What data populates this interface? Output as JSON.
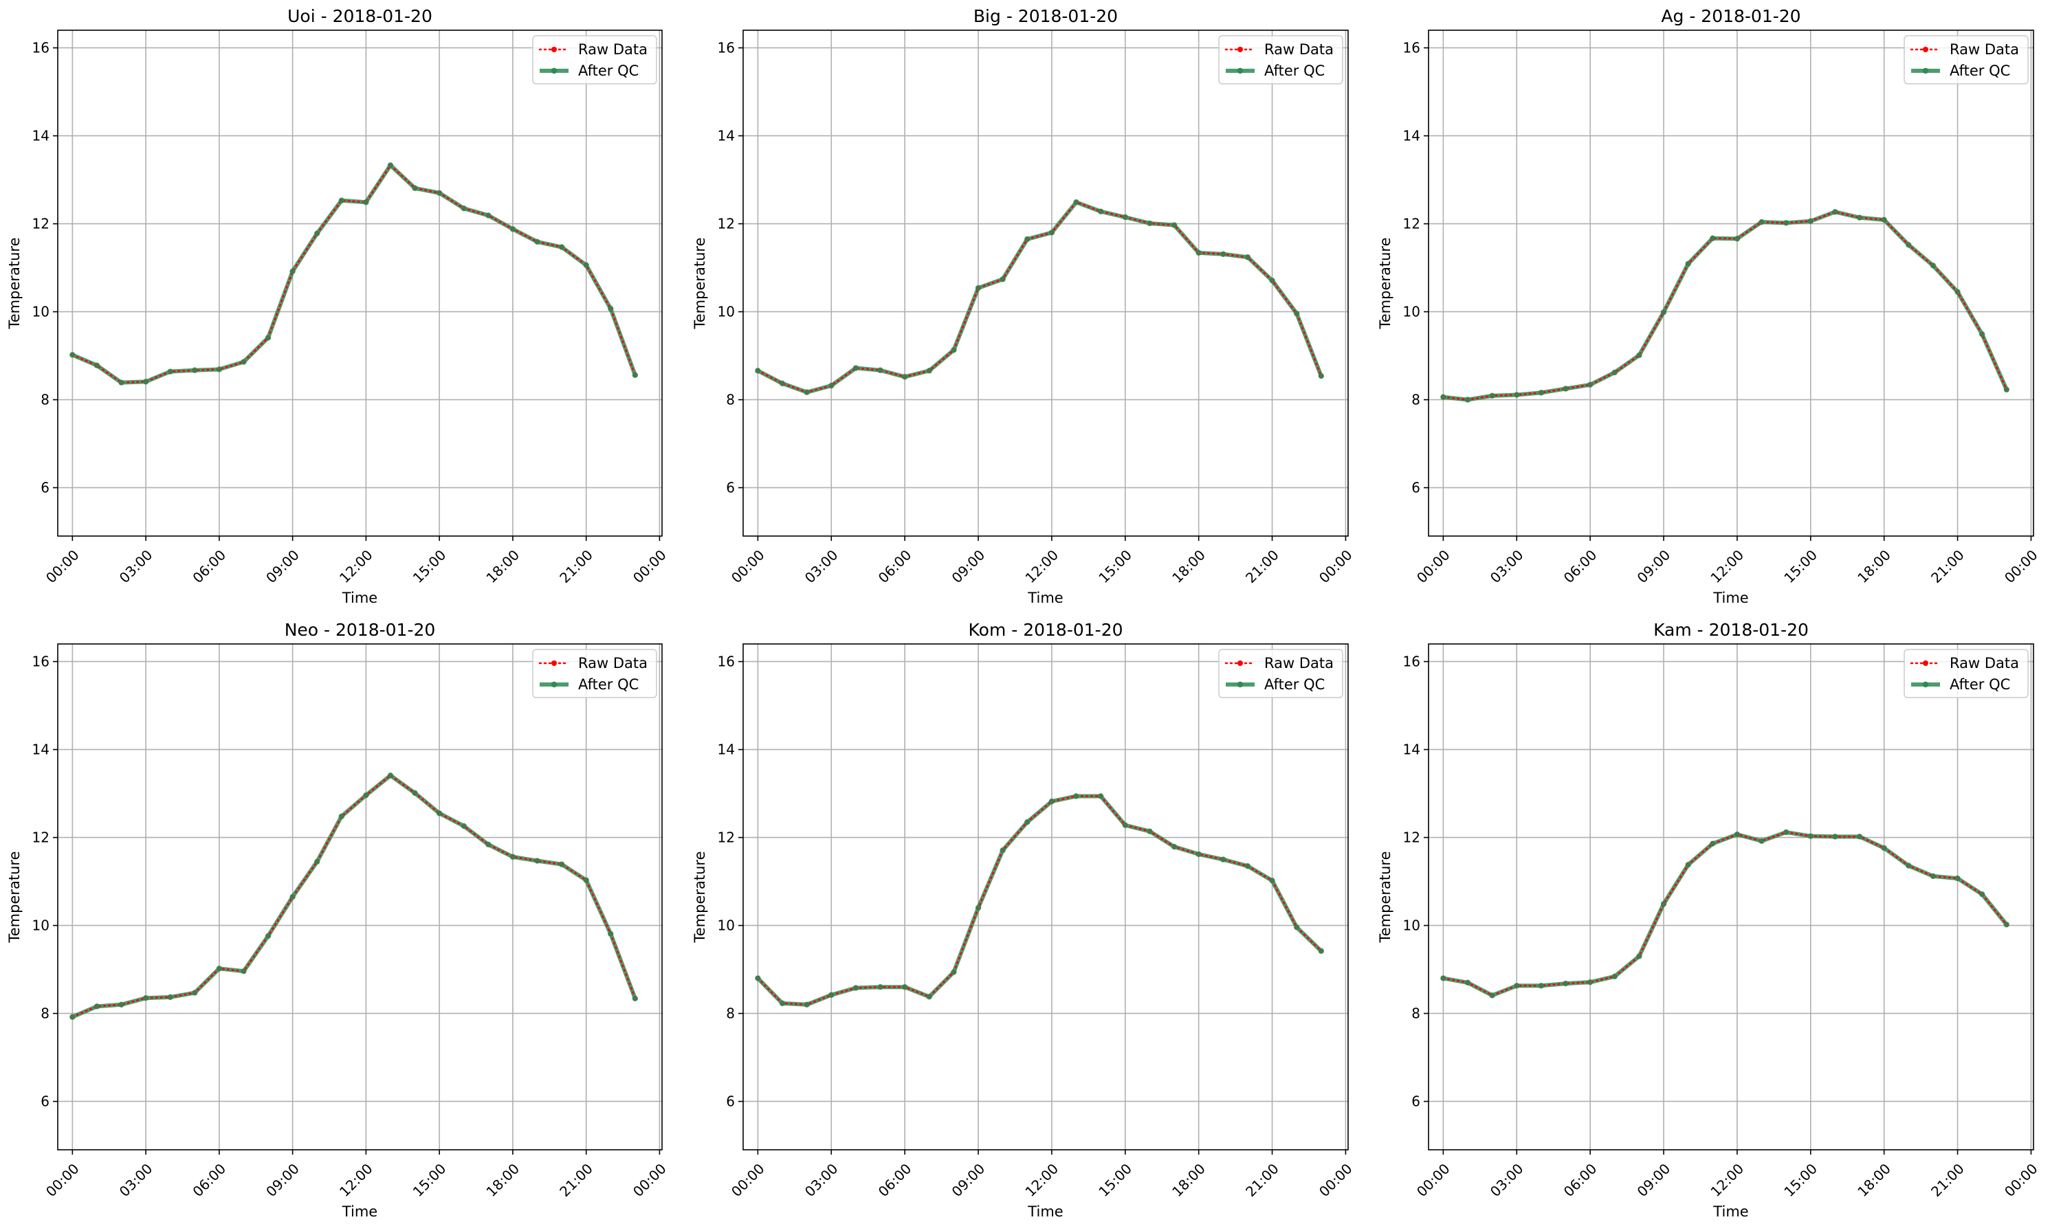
{
  "figure": {
    "colors": {
      "raw": "#ff0000",
      "qc": "#2e8b57",
      "grid": "#b0b0b0",
      "axis": "#000000"
    }
  },
  "chart_data": [
    {
      "type": "line",
      "title": "Uoi - 2018-01-20",
      "xlabel": "Time",
      "ylabel": "Temperature",
      "xlim": [
        -0.6,
        24.1
      ],
      "ylim": [
        4.9,
        16.4
      ],
      "yticks": [
        6,
        8,
        10,
        12,
        14,
        16
      ],
      "xticks": [
        0,
        3,
        6,
        9,
        12,
        15,
        18,
        21,
        24
      ],
      "xtick_labels": [
        "00:00",
        "03:00",
        "06:00",
        "09:00",
        "12:00",
        "15:00",
        "18:00",
        "21:00",
        "00:00"
      ],
      "grid": true,
      "legend_position": "top-right",
      "x": [
        "00:00",
        "01:00",
        "02:00",
        "03:00",
        "04:00",
        "05:00",
        "06:00",
        "07:00",
        "08:00",
        "09:00",
        "10:00",
        "11:00",
        "12:00",
        "13:00",
        "14:00",
        "15:00",
        "16:00",
        "17:00",
        "18:00",
        "19:00",
        "20:00",
        "21:00",
        "22:00",
        "23:00"
      ],
      "series": [
        {
          "name": "Raw Data",
          "values": [
            9.02,
            8.78,
            8.39,
            8.41,
            8.64,
            8.67,
            8.69,
            8.86,
            9.41,
            10.92,
            11.78,
            12.53,
            12.49,
            13.33,
            12.81,
            12.7,
            12.35,
            12.19,
            11.88,
            11.59,
            11.47,
            11.06,
            10.07,
            8.56
          ]
        },
        {
          "name": "After QC",
          "values": [
            9.02,
            8.78,
            8.39,
            8.41,
            8.64,
            8.67,
            8.69,
            8.86,
            9.41,
            10.92,
            11.78,
            12.53,
            12.49,
            13.33,
            12.81,
            12.7,
            12.35,
            12.19,
            11.88,
            11.59,
            11.47,
            11.06,
            10.07,
            8.56
          ]
        }
      ]
    },
    {
      "type": "line",
      "title": "Big - 2018-01-20",
      "xlabel": "Time",
      "ylabel": "Temperature",
      "xlim": [
        -0.6,
        24.1
      ],
      "ylim": [
        4.9,
        16.4
      ],
      "yticks": [
        6,
        8,
        10,
        12,
        14,
        16
      ],
      "xticks": [
        0,
        3,
        6,
        9,
        12,
        15,
        18,
        21,
        24
      ],
      "xtick_labels": [
        "00:00",
        "03:00",
        "06:00",
        "09:00",
        "12:00",
        "15:00",
        "18:00",
        "21:00",
        "00:00"
      ],
      "grid": true,
      "legend_position": "top-right",
      "x": [
        "00:00",
        "01:00",
        "02:00",
        "03:00",
        "04:00",
        "05:00",
        "06:00",
        "07:00",
        "08:00",
        "09:00",
        "10:00",
        "11:00",
        "12:00",
        "13:00",
        "14:00",
        "15:00",
        "16:00",
        "17:00",
        "18:00",
        "19:00",
        "20:00",
        "21:00",
        "22:00",
        "23:00"
      ],
      "series": [
        {
          "name": "Raw Data",
          "values": [
            8.66,
            8.37,
            8.17,
            8.32,
            8.72,
            8.67,
            8.52,
            8.66,
            9.13,
            10.54,
            10.74,
            11.65,
            11.8,
            12.49,
            12.28,
            12.15,
            12.01,
            11.97,
            11.34,
            11.31,
            11.24,
            10.71,
            9.96,
            8.54
          ]
        },
        {
          "name": "After QC",
          "values": [
            8.66,
            8.37,
            8.17,
            8.32,
            8.72,
            8.67,
            8.52,
            8.66,
            9.13,
            10.54,
            10.74,
            11.65,
            11.8,
            12.49,
            12.28,
            12.15,
            12.01,
            11.97,
            11.34,
            11.31,
            11.24,
            10.71,
            9.96,
            8.54
          ]
        }
      ]
    },
    {
      "type": "line",
      "title": "Ag - 2018-01-20",
      "xlabel": "Time",
      "ylabel": "Temperature",
      "xlim": [
        -0.6,
        24.1
      ],
      "ylim": [
        4.9,
        16.4
      ],
      "yticks": [
        6,
        8,
        10,
        12,
        14,
        16
      ],
      "xticks": [
        0,
        3,
        6,
        9,
        12,
        15,
        18,
        21,
        24
      ],
      "xtick_labels": [
        "00:00",
        "03:00",
        "06:00",
        "09:00",
        "12:00",
        "15:00",
        "18:00",
        "21:00",
        "00:00"
      ],
      "grid": true,
      "legend_position": "top-right",
      "x": [
        "00:00",
        "01:00",
        "02:00",
        "03:00",
        "04:00",
        "05:00",
        "06:00",
        "07:00",
        "08:00",
        "09:00",
        "10:00",
        "11:00",
        "12:00",
        "13:00",
        "14:00",
        "15:00",
        "16:00",
        "17:00",
        "18:00",
        "19:00",
        "20:00",
        "21:00",
        "22:00",
        "23:00"
      ],
      "series": [
        {
          "name": "Raw Data",
          "values": [
            8.06,
            8.0,
            8.09,
            8.11,
            8.16,
            8.25,
            8.34,
            8.62,
            9.01,
            9.99,
            11.09,
            11.67,
            11.66,
            12.04,
            12.02,
            12.06,
            12.27,
            12.14,
            12.09,
            11.52,
            11.05,
            10.45,
            9.49,
            8.23
          ]
        },
        {
          "name": "After QC",
          "values": [
            8.06,
            8.0,
            8.09,
            8.11,
            8.16,
            8.25,
            8.34,
            8.62,
            9.01,
            9.99,
            11.09,
            11.67,
            11.66,
            12.04,
            12.02,
            12.06,
            12.27,
            12.14,
            12.09,
            11.52,
            11.05,
            10.45,
            9.49,
            8.23
          ]
        }
      ]
    },
    {
      "type": "line",
      "title": "Neo - 2018-01-20",
      "xlabel": "Time",
      "ylabel": "Temperature",
      "xlim": [
        -0.6,
        24.1
      ],
      "ylim": [
        4.9,
        16.4
      ],
      "yticks": [
        6,
        8,
        10,
        12,
        14,
        16
      ],
      "xticks": [
        0,
        3,
        6,
        9,
        12,
        15,
        18,
        21,
        24
      ],
      "xtick_labels": [
        "00:00",
        "03:00",
        "06:00",
        "09:00",
        "12:00",
        "15:00",
        "18:00",
        "21:00",
        "00:00"
      ],
      "grid": true,
      "legend_position": "top-right",
      "x": [
        "00:00",
        "01:00",
        "02:00",
        "03:00",
        "04:00",
        "05:00",
        "06:00",
        "07:00",
        "08:00",
        "09:00",
        "10:00",
        "11:00",
        "12:00",
        "13:00",
        "14:00",
        "15:00",
        "16:00",
        "17:00",
        "18:00",
        "19:00",
        "20:00",
        "21:00",
        "22:00",
        "23:00"
      ],
      "series": [
        {
          "name": "Raw Data",
          "values": [
            7.92,
            8.16,
            8.2,
            8.35,
            8.37,
            8.47,
            9.02,
            8.96,
            9.76,
            10.65,
            11.45,
            12.48,
            12.96,
            13.41,
            13.01,
            12.55,
            12.26,
            11.84,
            11.56,
            11.47,
            11.39,
            11.03,
            9.81,
            8.34
          ]
        },
        {
          "name": "After QC",
          "values": [
            7.92,
            8.16,
            8.2,
            8.35,
            8.37,
            8.47,
            9.02,
            8.96,
            9.76,
            10.65,
            11.45,
            12.48,
            12.96,
            13.41,
            13.01,
            12.55,
            12.26,
            11.84,
            11.56,
            11.47,
            11.39,
            11.03,
            9.81,
            8.34
          ]
        }
      ]
    },
    {
      "type": "line",
      "title": "Kom - 2018-01-20",
      "xlabel": "Time",
      "ylabel": "Temperature",
      "xlim": [
        -0.6,
        24.1
      ],
      "ylim": [
        4.9,
        16.4
      ],
      "yticks": [
        6,
        8,
        10,
        12,
        14,
        16
      ],
      "xticks": [
        0,
        3,
        6,
        9,
        12,
        15,
        18,
        21,
        24
      ],
      "xtick_labels": [
        "00:00",
        "03:00",
        "06:00",
        "09:00",
        "12:00",
        "15:00",
        "18:00",
        "21:00",
        "00:00"
      ],
      "grid": true,
      "legend_position": "top-right",
      "x": [
        "00:00",
        "01:00",
        "02:00",
        "03:00",
        "04:00",
        "05:00",
        "06:00",
        "07:00",
        "08:00",
        "09:00",
        "10:00",
        "11:00",
        "12:00",
        "13:00",
        "14:00",
        "15:00",
        "16:00",
        "17:00",
        "18:00",
        "19:00",
        "20:00",
        "21:00",
        "22:00",
        "23:00"
      ],
      "series": [
        {
          "name": "Raw Data",
          "values": [
            8.8,
            8.23,
            8.2,
            8.42,
            8.58,
            8.6,
            8.6,
            8.38,
            8.94,
            10.4,
            11.71,
            12.35,
            12.82,
            12.94,
            12.94,
            12.28,
            12.14,
            11.79,
            11.62,
            11.5,
            11.35,
            11.02,
            9.96,
            9.42
          ]
        },
        {
          "name": "After QC",
          "values": [
            8.8,
            8.23,
            8.2,
            8.42,
            8.58,
            8.6,
            8.6,
            8.38,
            8.94,
            10.4,
            11.71,
            12.35,
            12.82,
            12.94,
            12.94,
            12.28,
            12.14,
            11.79,
            11.62,
            11.5,
            11.35,
            11.02,
            9.96,
            9.42
          ]
        }
      ]
    },
    {
      "type": "line",
      "title": "Kam - 2018-01-20",
      "xlabel": "Time",
      "ylabel": "Temperature",
      "xlim": [
        -0.6,
        24.1
      ],
      "ylim": [
        4.9,
        16.4
      ],
      "yticks": [
        6,
        8,
        10,
        12,
        14,
        16
      ],
      "xticks": [
        0,
        3,
        6,
        9,
        12,
        15,
        18,
        21,
        24
      ],
      "xtick_labels": [
        "00:00",
        "03:00",
        "06:00",
        "09:00",
        "12:00",
        "15:00",
        "18:00",
        "21:00",
        "00:00"
      ],
      "grid": true,
      "legend_position": "top-right",
      "x": [
        "00:00",
        "01:00",
        "02:00",
        "03:00",
        "04:00",
        "05:00",
        "06:00",
        "07:00",
        "08:00",
        "09:00",
        "10:00",
        "11:00",
        "12:00",
        "13:00",
        "14:00",
        "15:00",
        "16:00",
        "17:00",
        "18:00",
        "19:00",
        "20:00",
        "21:00",
        "22:00",
        "23:00"
      ],
      "series": [
        {
          "name": "Raw Data",
          "values": [
            8.8,
            8.7,
            8.41,
            8.63,
            8.63,
            8.68,
            8.71,
            8.84,
            9.3,
            10.49,
            11.38,
            11.86,
            12.07,
            11.92,
            12.12,
            12.03,
            12.02,
            12.02,
            11.76,
            11.36,
            11.12,
            11.07,
            10.71,
            10.02
          ]
        },
        {
          "name": "After QC",
          "values": [
            8.8,
            8.7,
            8.41,
            8.63,
            8.63,
            8.68,
            8.71,
            8.84,
            9.3,
            10.49,
            11.38,
            11.86,
            12.07,
            11.92,
            12.12,
            12.03,
            12.02,
            12.02,
            11.76,
            11.36,
            11.12,
            11.07,
            10.71,
            10.02
          ]
        }
      ]
    }
  ]
}
